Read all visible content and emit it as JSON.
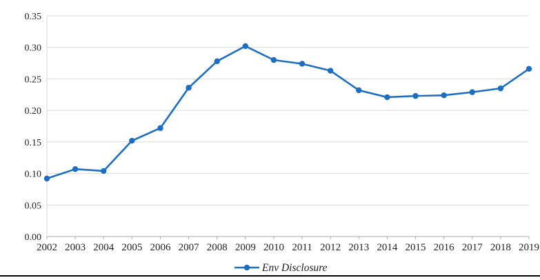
{
  "chart_data": {
    "type": "line",
    "title": "",
    "xlabel": "",
    "ylabel": "",
    "categories": [
      "2002",
      "2003",
      "2004",
      "2005",
      "2006",
      "2007",
      "2008",
      "2009",
      "2010",
      "2011",
      "2012",
      "2013",
      "2014",
      "2015",
      "2016",
      "2017",
      "2018",
      "2019"
    ],
    "series": [
      {
        "name": "Env Disclosure",
        "color": "#1b6ec2",
        "values": [
          0.092,
          0.107,
          0.104,
          0.152,
          0.172,
          0.236,
          0.278,
          0.302,
          0.28,
          0.274,
          0.263,
          0.232,
          0.221,
          0.223,
          0.224,
          0.229,
          0.235,
          0.266
        ]
      }
    ],
    "ylim": [
      0,
      0.35
    ],
    "ytick_values": [
      0.0,
      0.05,
      0.1,
      0.15,
      0.2,
      0.25,
      0.3,
      0.35
    ],
    "ytick_labels": [
      "0.00",
      "0.05",
      "0.10",
      "0.15",
      "0.20",
      "0.25",
      "0.30",
      "0.35"
    ],
    "grid": "horizontal",
    "legend_position": "bottom-center"
  },
  "colors": {
    "line": "#1b6ec2",
    "gridline": "#d9d9d9",
    "axis": "#ababab",
    "text": "#212121",
    "bottom_rule": "#000000"
  }
}
